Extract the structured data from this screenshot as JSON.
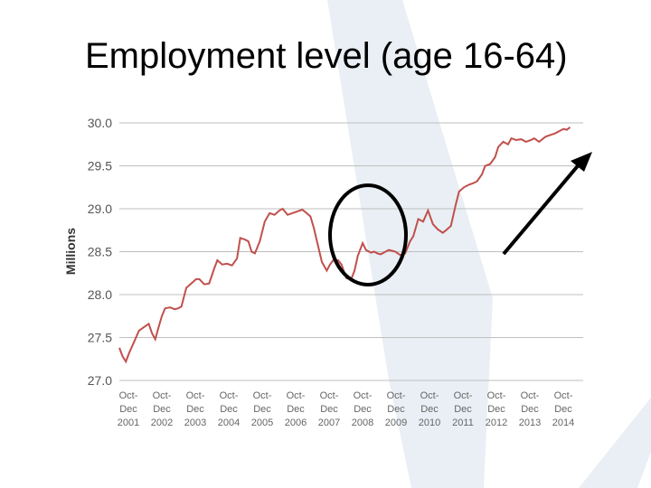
{
  "slide": {
    "title": "Employment level (age 16-64)"
  },
  "colors": {
    "line": "#c0504d",
    "grid": "#bfbfbf",
    "watermark": "#e9eff4",
    "annotation": "#000000"
  },
  "annotations": [
    "ellipse-highlight-2008-2009",
    "arrow-rising-2014"
  ],
  "chart_data": {
    "type": "line",
    "title": "",
    "xlabel": "",
    "ylabel": "Millions",
    "ylim": [
      27.0,
      30.0
    ],
    "yticks": [
      "30.0",
      "29.5",
      "29.0",
      "28.5",
      "28.0",
      "27.5",
      "27.0"
    ],
    "xlim": [
      2001.0,
      2015.2
    ],
    "grid": true,
    "categories": [
      [
        "Oct-",
        "Dec",
        "2001"
      ],
      [
        "Oct-",
        "Dec",
        "2002"
      ],
      [
        "Oct-",
        "Dec",
        "2003"
      ],
      [
        "Oct-",
        "Dec",
        "2004"
      ],
      [
        "Oct-",
        "Dec",
        "2005"
      ],
      [
        "Oct-",
        "Dec",
        "2006"
      ],
      [
        "Oct-",
        "Dec",
        "2007"
      ],
      [
        "Oct-",
        "Dec",
        "2008"
      ],
      [
        "Oct-",
        "Dec",
        "2009"
      ],
      [
        "Oct-",
        "Dec",
        "2010"
      ],
      [
        "Oct-",
        "Dec",
        "2011"
      ],
      [
        "Oct-",
        "Dec",
        "2012"
      ],
      [
        "Oct-",
        "Dec",
        "2013"
      ],
      [
        "Oct-",
        "Dec",
        "2014"
      ]
    ],
    "x": [
      2001.0,
      2001.1,
      2001.2,
      2001.3,
      2001.45,
      2001.6,
      2001.75,
      2001.9,
      2002.0,
      2002.1,
      2002.2,
      2002.3,
      2002.4,
      2002.55,
      2002.7,
      2002.8,
      2002.9,
      2003.05,
      2003.2,
      2003.35,
      2003.45,
      2003.6,
      2003.75,
      2003.9,
      2004.0,
      2004.15,
      2004.3,
      2004.45,
      2004.6,
      2004.7,
      2004.85,
      2004.95,
      2005.05,
      2005.15,
      2005.3,
      2005.45,
      2005.6,
      2005.75,
      2005.9,
      2006.0,
      2006.15,
      2006.3,
      2006.45,
      2006.6,
      2006.7,
      2006.85,
      2006.95,
      2007.05,
      2007.2,
      2007.35,
      2007.45,
      2007.55,
      2007.7,
      2007.8,
      2007.95,
      2008.1,
      2008.2,
      2008.3,
      2008.45,
      2008.55,
      2008.7,
      2008.8,
      2008.9,
      2009.0,
      2009.15,
      2009.25,
      2009.35,
      2009.45,
      2009.6,
      2009.75,
      2009.9,
      2010.0,
      2010.15,
      2010.3,
      2010.45,
      2010.6,
      2010.75,
      2010.9,
      2011.0,
      2011.15,
      2011.3,
      2011.4,
      2011.55,
      2011.7,
      2011.85,
      2011.95,
      2012.1,
      2012.2,
      2012.35,
      2012.5,
      2012.6,
      2012.75,
      2012.9,
      2013.0,
      2013.15,
      2013.3,
      2013.45,
      2013.6,
      2013.7,
      2013.85,
      2013.95,
      2014.05,
      2014.2,
      2014.35,
      2014.5,
      2014.6,
      2014.7,
      2014.8
    ],
    "series": [
      {
        "values": [
          27.38,
          27.28,
          27.22,
          27.32,
          27.45,
          27.58,
          27.62,
          27.66,
          27.55,
          27.48,
          27.62,
          27.75,
          27.84,
          27.85,
          27.83,
          27.84,
          27.86,
          28.08,
          28.13,
          28.18,
          28.18,
          28.12,
          28.13,
          28.3,
          28.4,
          28.35,
          28.36,
          28.34,
          28.42,
          28.66,
          28.64,
          28.62,
          28.5,
          28.48,
          28.62,
          28.85,
          28.95,
          28.93,
          28.98,
          29.0,
          28.93,
          28.95,
          28.97,
          28.99,
          28.96,
          28.91,
          28.78,
          28.62,
          28.38,
          28.28,
          28.35,
          28.4,
          28.4,
          28.35,
          28.19,
          28.18,
          28.28,
          28.45,
          28.6,
          28.52,
          28.49,
          28.5,
          28.48,
          28.47,
          28.5,
          28.52,
          28.51,
          28.5,
          28.46,
          28.48,
          28.62,
          28.68,
          28.88,
          28.85,
          28.98,
          28.82,
          28.76,
          28.72,
          28.75,
          28.8,
          29.05,
          29.2,
          29.25,
          29.28,
          29.3,
          29.32,
          29.4,
          29.5,
          29.52,
          29.6,
          29.72,
          29.78,
          29.75,
          29.82,
          29.8,
          29.81,
          29.78,
          29.8,
          29.82,
          29.78,
          29.81,
          29.84,
          29.86,
          29.88,
          29.91,
          29.93,
          29.92,
          29.95
        ]
      }
    ]
  }
}
